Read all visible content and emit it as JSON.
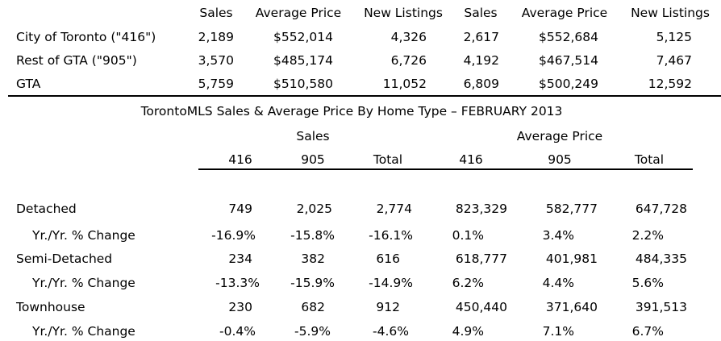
{
  "top_table": {
    "headers": [
      "Sales",
      "Average Price",
      "New Listings",
      "Sales",
      "Average Price",
      "New Listings"
    ],
    "rows": [
      {
        "label": "City of Toronto (\"416\")",
        "values": [
          "2,189",
          "$552,014",
          "4,326",
          "2,617",
          "$552,684",
          "5,125"
        ]
      },
      {
        "label": "Rest of GTA (\"905\")",
        "values": [
          "3,570",
          "$485,174",
          "6,726",
          "4,192",
          "$467,514",
          "7,467"
        ]
      },
      {
        "label": "GTA",
        "values": [
          "5,759",
          "$510,580",
          "11,052",
          "6,809",
          "$500,249",
          "12,592"
        ]
      }
    ]
  },
  "bottom_table": {
    "title": "TorontoMLS Sales & Average Price  By Home Type – FEBRUARY 2013",
    "group_headers": [
      "Sales",
      "Average Price"
    ],
    "columns": [
      "416",
      "905",
      "Total",
      "416",
      "905",
      "Total"
    ],
    "rows": [
      {
        "label": "Detached",
        "values": [
          "749",
          "2,025",
          "2,774",
          "823,329",
          "582,777",
          "647,728"
        ]
      },
      {
        "label": "Yr./Yr. % Change",
        "values": [
          "-16.9%",
          "-15.8%",
          "-16.1%",
          "0.1%",
          "3.4%",
          "2.2%"
        ]
      },
      {
        "label": "Semi-Detached",
        "values": [
          "234",
          "382",
          "616",
          "618,777",
          "401,981",
          "484,335"
        ]
      },
      {
        "label": "Yr./Yr. % Change",
        "values": [
          "-13.3%",
          "-15.9%",
          "-14.9%",
          "6.2%",
          "4.4%",
          "5.6%"
        ]
      },
      {
        "label": "Townhouse",
        "values": [
          "230",
          "682",
          "912",
          "450,440",
          "371,640",
          "391,513"
        ]
      },
      {
        "label": "Yr./Yr. % Change",
        "values": [
          "-0.4%",
          "-5.9%",
          "-4.6%",
          "4.9%",
          "7.1%",
          "6.7%"
        ]
      }
    ]
  }
}
